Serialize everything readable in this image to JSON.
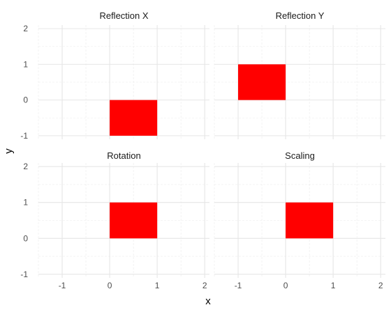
{
  "chart_data": {
    "type": "rect",
    "xlabel": "x",
    "ylabel": "y",
    "xlim": [
      -1.5,
      2.1
    ],
    "ylim": [
      -1.1,
      2.1
    ],
    "x_ticks": [
      -1,
      0,
      1,
      2
    ],
    "y_ticks": [
      -1,
      0,
      1,
      2
    ],
    "grid": true,
    "colors": {
      "fill": "#ff0000"
    },
    "panels": [
      {
        "title": "Reflection X",
        "rect": {
          "xmin": 0,
          "xmax": 1,
          "ymin": -1,
          "ymax": 0
        }
      },
      {
        "title": "Reflection Y",
        "rect": {
          "xmin": -1,
          "xmax": 0,
          "ymin": 0,
          "ymax": 1
        }
      },
      {
        "title": "Rotation",
        "rect": {
          "xmin": 0,
          "xmax": 1,
          "ymin": 0,
          "ymax": 1
        }
      },
      {
        "title": "Scaling",
        "rect": {
          "xmin": 0,
          "xmax": 1,
          "ymin": 0,
          "ymax": 1
        }
      }
    ]
  }
}
